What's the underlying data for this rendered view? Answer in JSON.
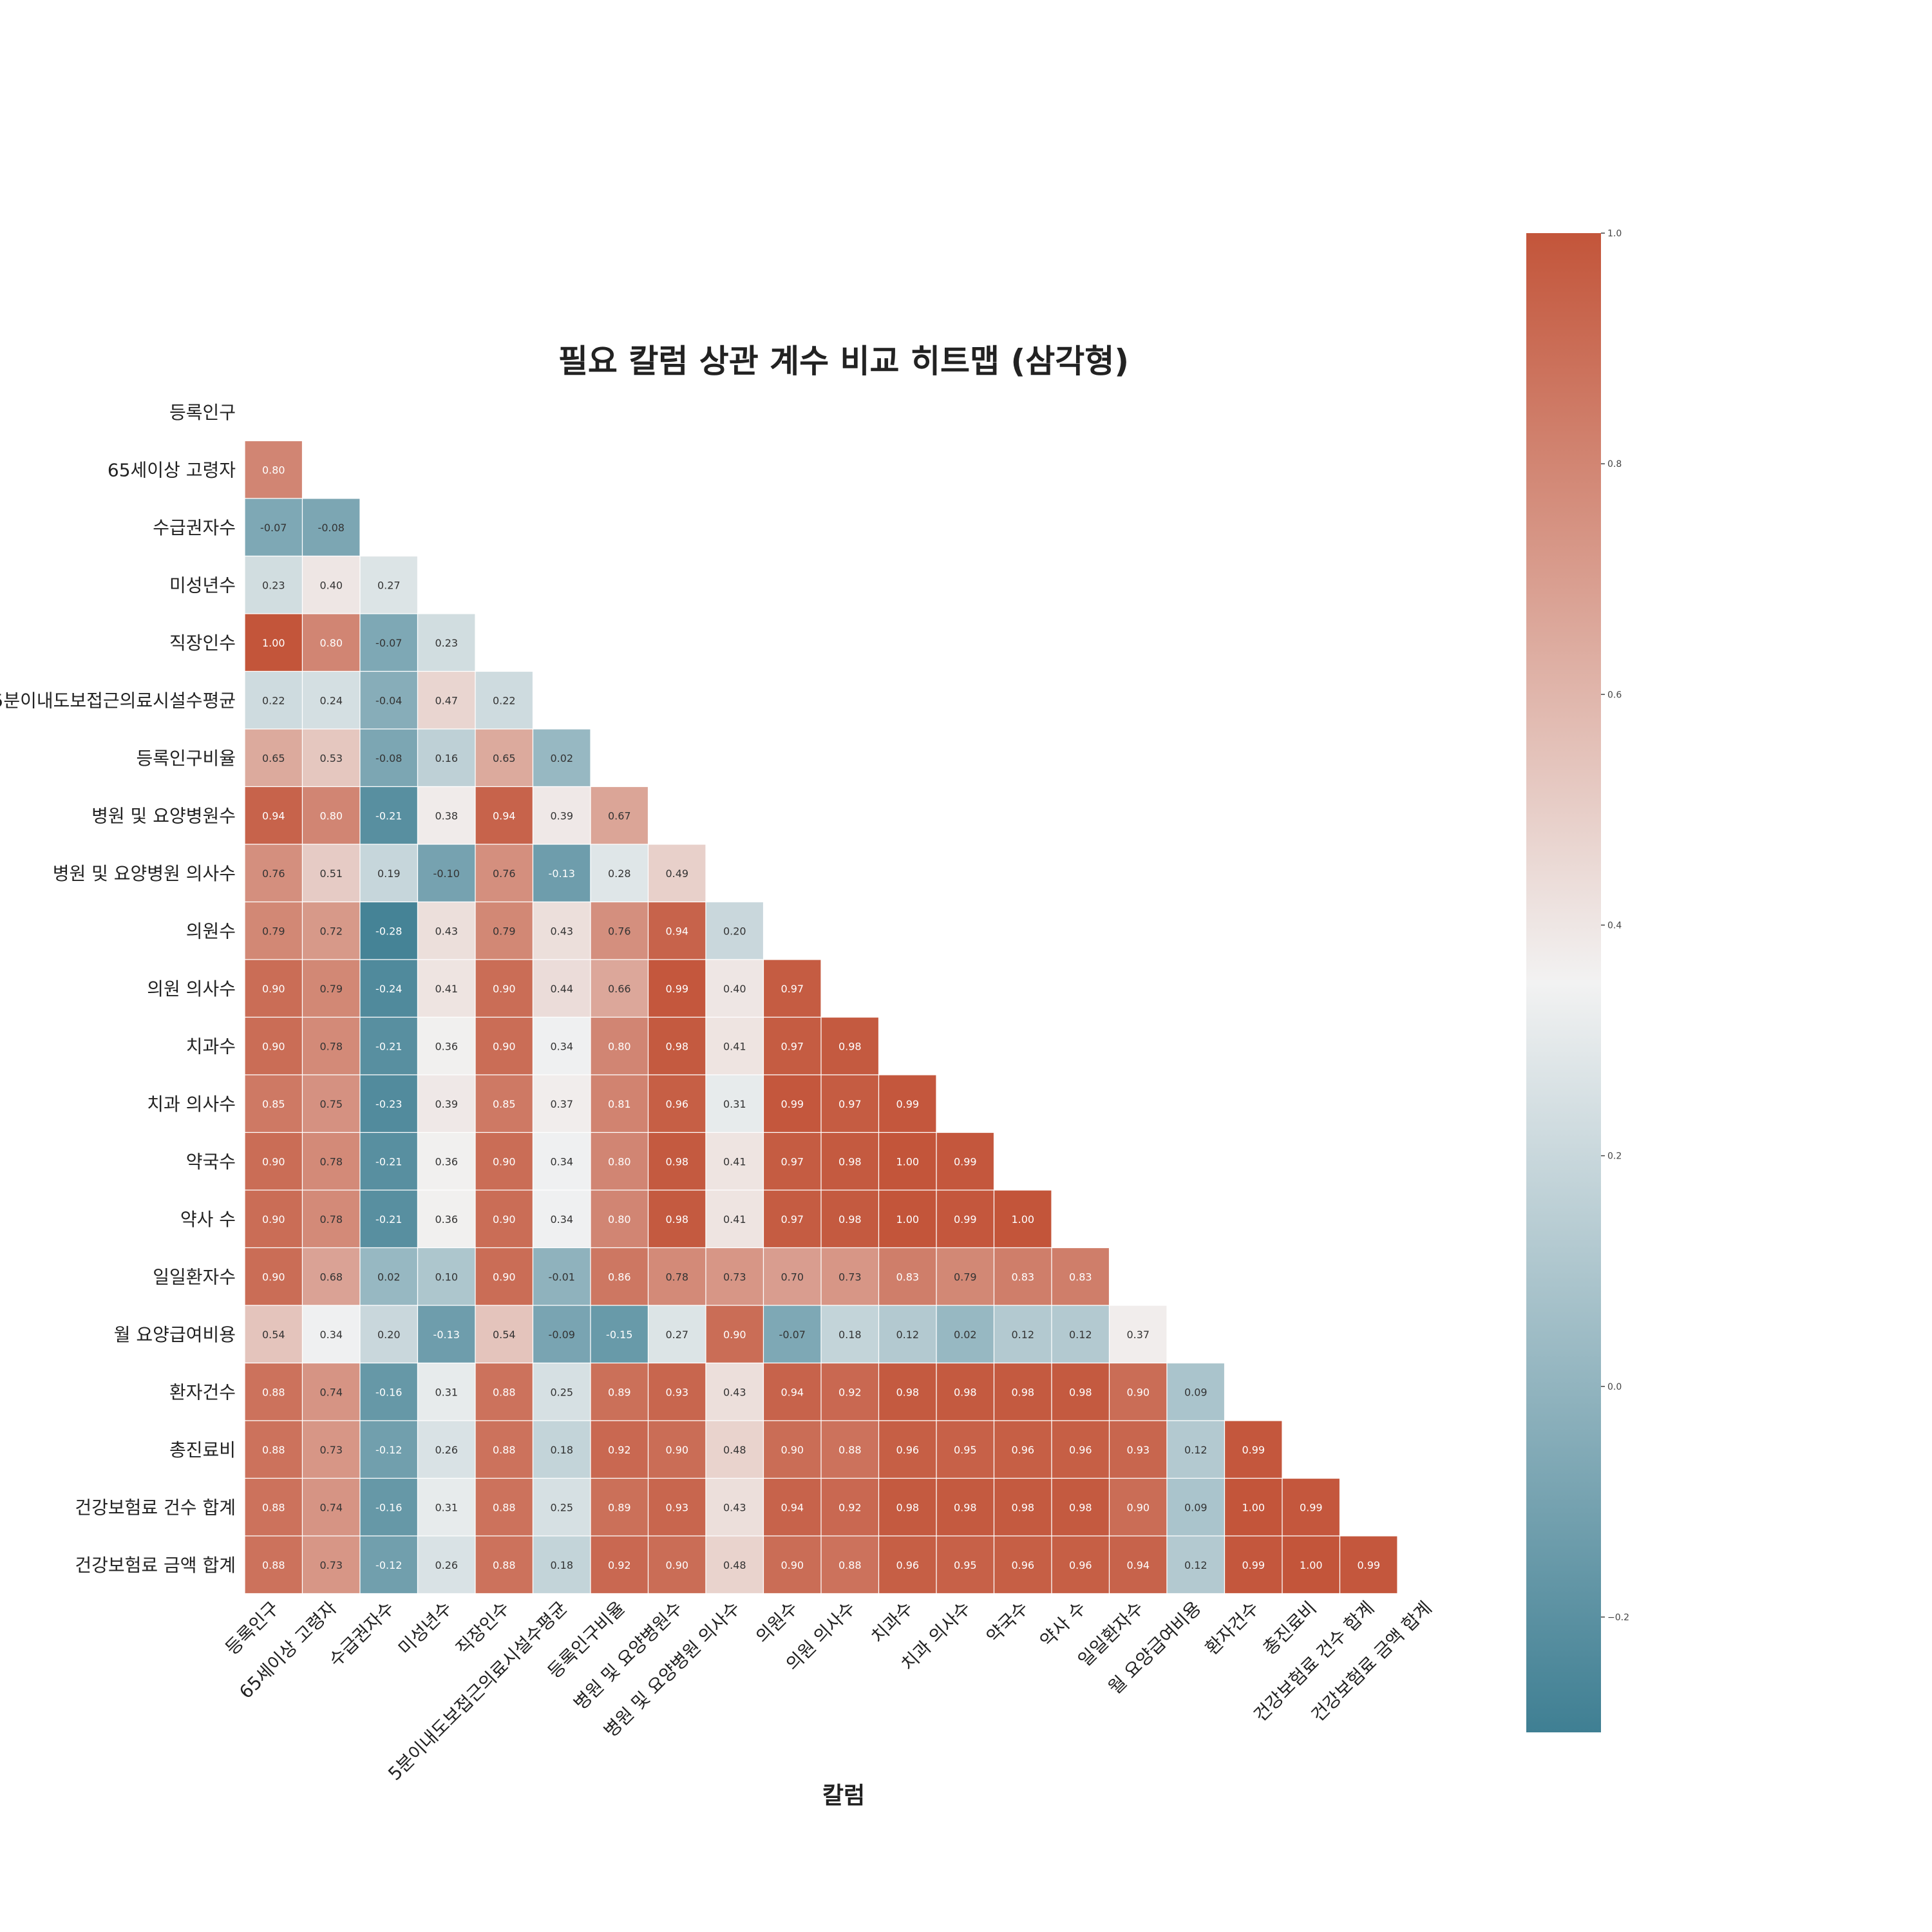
{
  "chart_data": {
    "type": "heatmap",
    "title": "필요 칼럼 상관 계수 비교 히트맵 (삼각형)",
    "xlabel": "칼럼",
    "ylabel": "",
    "mask": "upper-triangle-including-diagonal",
    "labels": [
      "등록인구",
      "65세이상 고령자",
      "수급권자수",
      "미성년수",
      "직장인수",
      "5분이내도보접근의료시설수평균",
      "등록인구비율",
      "병원 및 요양병원수",
      "병원 및 요양병원 의사수",
      "의원수",
      "의원 의사수",
      "치과수",
      "치과 의사수",
      "약국수",
      "약사 수",
      "일일환자수",
      "월 요양급여비용",
      "환자건수",
      "총진료비",
      "건강보험료 건수 합계",
      "건강보험료 금액 합계"
    ],
    "rows": [
      [],
      [
        0.8
      ],
      [
        -0.07,
        -0.08
      ],
      [
        0.23,
        0.4,
        0.27
      ],
      [
        1.0,
        0.8,
        -0.07,
        0.23
      ],
      [
        0.22,
        0.24,
        -0.04,
        0.47,
        0.22
      ],
      [
        0.65,
        0.53,
        -0.08,
        0.16,
        0.65,
        0.02
      ],
      [
        0.94,
        0.8,
        -0.21,
        0.38,
        0.94,
        0.39,
        0.67
      ],
      [
        0.76,
        0.51,
        0.19,
        -0.1,
        0.76,
        -0.13,
        0.28,
        0.49
      ],
      [
        0.79,
        0.72,
        -0.28,
        0.43,
        0.79,
        0.43,
        0.76,
        0.94,
        0.2
      ],
      [
        0.9,
        0.79,
        -0.24,
        0.41,
        0.9,
        0.44,
        0.66,
        0.99,
        0.4,
        0.97
      ],
      [
        0.9,
        0.78,
        -0.21,
        0.36,
        0.9,
        0.34,
        0.8,
        0.98,
        0.41,
        0.97,
        0.98
      ],
      [
        0.85,
        0.75,
        -0.23,
        0.39,
        0.85,
        0.37,
        0.81,
        0.96,
        0.31,
        0.99,
        0.97,
        0.99
      ],
      [
        0.9,
        0.78,
        -0.21,
        0.36,
        0.9,
        0.34,
        0.8,
        0.98,
        0.41,
        0.97,
        0.98,
        1.0,
        0.99
      ],
      [
        0.9,
        0.78,
        -0.21,
        0.36,
        0.9,
        0.34,
        0.8,
        0.98,
        0.41,
        0.97,
        0.98,
        1.0,
        0.99,
        1.0
      ],
      [
        0.9,
        0.68,
        0.02,
        0.1,
        0.9,
        -0.01,
        0.86,
        0.78,
        0.73,
        0.7,
        0.73,
        0.83,
        0.79,
        0.83,
        0.83
      ],
      [
        0.54,
        0.34,
        0.2,
        -0.13,
        0.54,
        -0.09,
        -0.15,
        0.27,
        0.9,
        -0.07,
        0.18,
        0.12,
        0.02,
        0.12,
        0.12,
        0.37
      ],
      [
        0.88,
        0.74,
        -0.16,
        0.31,
        0.88,
        0.25,
        0.89,
        0.93,
        0.43,
        0.94,
        0.92,
        0.98,
        0.98,
        0.98,
        0.98,
        0.9,
        0.09
      ],
      [
        0.88,
        0.73,
        -0.12,
        0.26,
        0.88,
        0.18,
        0.92,
        0.9,
        0.48,
        0.9,
        0.88,
        0.96,
        0.95,
        0.96,
        0.96,
        0.93,
        0.12,
        0.99
      ],
      [
        0.88,
        0.74,
        -0.16,
        0.31,
        0.88,
        0.25,
        0.89,
        0.93,
        0.43,
        0.94,
        0.92,
        0.98,
        0.98,
        0.98,
        0.98,
        0.9,
        0.09,
        1.0,
        0.99
      ],
      [
        0.88,
        0.73,
        -0.12,
        0.26,
        0.88,
        0.18,
        0.92,
        0.9,
        0.48,
        0.9,
        0.88,
        0.96,
        0.95,
        0.96,
        0.96,
        0.94,
        0.12,
        0.99,
        1.0,
        0.99
      ]
    ],
    "colorbar": {
      "vmin": -0.3,
      "vmax": 1.0,
      "ticks": [
        1.0,
        0.8,
        0.6,
        0.4,
        0.2,
        0.0,
        -0.2
      ],
      "tick_labels": [
        "1.0",
        "0.8",
        "0.6",
        "0.4",
        "0.2",
        "0.0",
        "−0.2"
      ],
      "colors": [
        "#3f7f93",
        "#f2f2f2",
        "#c3553a"
      ],
      "mid_value": 0.35
    },
    "grid": false
  }
}
